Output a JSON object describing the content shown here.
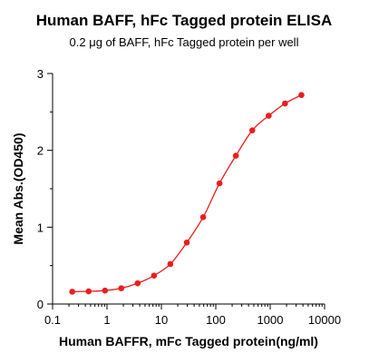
{
  "chart_data": {
    "type": "line",
    "title": "Human BAFF, hFc Tagged protein ELISA",
    "subtitle": "0.2 μg of BAFF, hFc Tagged protein per well",
    "xlabel": "Human BAFFR, mFc Tagged protein(ng/ml)",
    "ylabel": "Mean Abs.(OD450)",
    "x_scale": "log",
    "xlim": [
      0.1,
      10000
    ],
    "ylim": [
      0,
      3
    ],
    "x_ticks": [
      {
        "value": 0.1,
        "label": "0.1"
      },
      {
        "value": 1,
        "label": "1"
      },
      {
        "value": 10,
        "label": "10"
      },
      {
        "value": 100,
        "label": "100"
      },
      {
        "value": 1000,
        "label": "1000"
      },
      {
        "value": 10000,
        "label": "10000"
      }
    ],
    "y_ticks": [
      {
        "value": 0,
        "label": "0"
      },
      {
        "value": 1,
        "label": "1"
      },
      {
        "value": 2,
        "label": "2"
      },
      {
        "value": 3,
        "label": "3"
      }
    ],
    "grid": false,
    "series": [
      {
        "color": "#ee1c1c",
        "x": [
          0.23,
          0.46,
          0.92,
          1.83,
          3.66,
          7.32,
          14.6,
          29.3,
          58.6,
          117,
          234,
          469,
          938,
          1875,
          3750
        ],
        "y": [
          0.16,
          0.165,
          0.175,
          0.205,
          0.27,
          0.37,
          0.52,
          0.8,
          1.13,
          1.57,
          1.93,
          2.26,
          2.45,
          2.61,
          2.72
        ]
      }
    ]
  }
}
